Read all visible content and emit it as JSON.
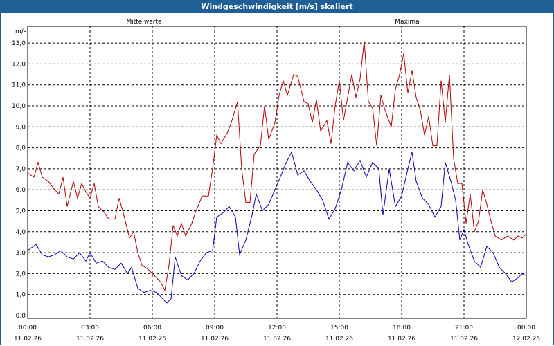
{
  "chart_data": {
    "type": "line",
    "title": "Windgeschwindigkeit [m/s] skaliert",
    "ylabel": "m/s",
    "ylim": [
      0,
      13.5
    ],
    "y_ticks": [
      "0,0",
      "1,0",
      "2,0",
      "3,0",
      "4,0",
      "5,0",
      "6,0",
      "7,0",
      "8,0",
      "9,0",
      "10,0",
      "11,0",
      "12,0",
      "13,0"
    ],
    "x_range_hours": [
      0,
      24
    ],
    "x_ticks": [
      {
        "time": "00:00",
        "date": "11.02.26"
      },
      {
        "time": "03:00",
        "date": "11.02.26"
      },
      {
        "time": "06:00",
        "date": "11.02.26"
      },
      {
        "time": "09:00",
        "date": "11.02.26"
      },
      {
        "time": "12:00",
        "date": "11.02.26"
      },
      {
        "time": "15:00",
        "date": "11.02.26"
      },
      {
        "time": "18:00",
        "date": "11.02.26"
      },
      {
        "time": "21:00",
        "date": "11.02.26"
      },
      {
        "time": "00:00",
        "date": "12.02.26"
      }
    ],
    "grid": true,
    "series": [
      {
        "name": "Mittelwerte",
        "color": "#0000b0",
        "points": [
          [
            0,
            3.1
          ],
          [
            0.4,
            3.4
          ],
          [
            0.7,
            2.9
          ],
          [
            1.0,
            2.8
          ],
          [
            1.3,
            2.9
          ],
          [
            1.6,
            3.1
          ],
          [
            1.9,
            2.8
          ],
          [
            2.2,
            2.7
          ],
          [
            2.5,
            3.0
          ],
          [
            2.8,
            2.6
          ],
          [
            3.0,
            3.0
          ],
          [
            3.3,
            2.5
          ],
          [
            3.6,
            2.6
          ],
          [
            3.9,
            2.3
          ],
          [
            4.2,
            2.2
          ],
          [
            4.5,
            2.5
          ],
          [
            4.8,
            2.0
          ],
          [
            5.0,
            2.3
          ],
          [
            5.3,
            1.3
          ],
          [
            5.6,
            1.1
          ],
          [
            5.9,
            1.2
          ],
          [
            6.2,
            1.1
          ],
          [
            6.4,
            0.9
          ],
          [
            6.7,
            0.6
          ],
          [
            6.9,
            0.8
          ],
          [
            7.1,
            2.8
          ],
          [
            7.4,
            1.9
          ],
          [
            7.7,
            1.7
          ],
          [
            8.0,
            2.0
          ],
          [
            8.3,
            2.6
          ],
          [
            8.6,
            3.0
          ],
          [
            8.9,
            3.1
          ],
          [
            9.1,
            4.7
          ],
          [
            9.4,
            4.9
          ],
          [
            9.7,
            5.2
          ],
          [
            10.0,
            4.7
          ],
          [
            10.2,
            2.9
          ],
          [
            10.5,
            3.6
          ],
          [
            10.8,
            4.8
          ],
          [
            11.0,
            5.8
          ],
          [
            11.3,
            5.0
          ],
          [
            11.6,
            5.3
          ],
          [
            11.9,
            6.0
          ],
          [
            12.2,
            6.7
          ],
          [
            12.4,
            7.2
          ],
          [
            12.7,
            7.8
          ],
          [
            13.0,
            6.7
          ],
          [
            13.3,
            6.9
          ],
          [
            13.6,
            6.4
          ],
          [
            13.9,
            6.0
          ],
          [
            14.2,
            5.5
          ],
          [
            14.5,
            4.6
          ],
          [
            14.8,
            5.1
          ],
          [
            15.1,
            6.0
          ],
          [
            15.4,
            7.3
          ],
          [
            15.7,
            6.9
          ],
          [
            16.0,
            7.4
          ],
          [
            16.3,
            6.6
          ],
          [
            16.6,
            7.3
          ],
          [
            16.9,
            7.0
          ],
          [
            17.1,
            4.8
          ],
          [
            17.4,
            7.0
          ],
          [
            17.7,
            5.2
          ],
          [
            18.0,
            5.7
          ],
          [
            18.3,
            7.0
          ],
          [
            18.5,
            7.8
          ],
          [
            18.7,
            6.4
          ],
          [
            19.0,
            5.6
          ],
          [
            19.3,
            5.3
          ],
          [
            19.6,
            4.7
          ],
          [
            19.9,
            5.2
          ],
          [
            20.1,
            7.3
          ],
          [
            20.4,
            6.3
          ],
          [
            20.6,
            5.5
          ],
          [
            20.8,
            3.6
          ],
          [
            21.0,
            4.1
          ],
          [
            21.2,
            3.4
          ],
          [
            21.5,
            2.6
          ],
          [
            21.8,
            2.3
          ],
          [
            22.1,
            3.3
          ],
          [
            22.4,
            3.0
          ],
          [
            22.7,
            2.3
          ],
          [
            23.0,
            2.0
          ],
          [
            23.3,
            1.6
          ],
          [
            23.6,
            1.8
          ],
          [
            23.8,
            2.0
          ],
          [
            24.0,
            1.9
          ]
        ]
      },
      {
        "name": "Maxima",
        "color": "#b00000",
        "points": [
          [
            0,
            6.8
          ],
          [
            0.3,
            6.6
          ],
          [
            0.5,
            7.3
          ],
          [
            0.7,
            6.6
          ],
          [
            1.0,
            6.4
          ],
          [
            1.3,
            6.0
          ],
          [
            1.5,
            5.8
          ],
          [
            1.7,
            6.6
          ],
          [
            1.9,
            5.2
          ],
          [
            2.2,
            6.4
          ],
          [
            2.4,
            5.6
          ],
          [
            2.6,
            6.3
          ],
          [
            2.8,
            5.9
          ],
          [
            3.0,
            5.6
          ],
          [
            3.2,
            6.3
          ],
          [
            3.4,
            5.2
          ],
          [
            3.7,
            4.9
          ],
          [
            3.9,
            4.6
          ],
          [
            4.2,
            4.6
          ],
          [
            4.4,
            5.6
          ],
          [
            4.6,
            4.9
          ],
          [
            4.9,
            3.7
          ],
          [
            5.1,
            4.0
          ],
          [
            5.3,
            3.0
          ],
          [
            5.5,
            2.4
          ],
          [
            5.8,
            2.2
          ],
          [
            6.1,
            1.9
          ],
          [
            6.4,
            1.6
          ],
          [
            6.6,
            1.2
          ],
          [
            6.8,
            2.4
          ],
          [
            7.0,
            4.3
          ],
          [
            7.2,
            3.8
          ],
          [
            7.4,
            4.4
          ],
          [
            7.6,
            3.8
          ],
          [
            7.9,
            4.4
          ],
          [
            8.1,
            5.0
          ],
          [
            8.4,
            5.7
          ],
          [
            8.7,
            5.7
          ],
          [
            8.9,
            7.0
          ],
          [
            9.1,
            8.6
          ],
          [
            9.3,
            8.2
          ],
          [
            9.6,
            8.7
          ],
          [
            9.8,
            9.2
          ],
          [
            10.1,
            10.2
          ],
          [
            10.3,
            7.0
          ],
          [
            10.5,
            5.4
          ],
          [
            10.7,
            5.4
          ],
          [
            10.9,
            7.7
          ],
          [
            11.2,
            8.1
          ],
          [
            11.4,
            10.0
          ],
          [
            11.6,
            8.4
          ],
          [
            11.9,
            9.2
          ],
          [
            12.1,
            10.5
          ],
          [
            12.3,
            11.2
          ],
          [
            12.5,
            10.5
          ],
          [
            12.8,
            11.5
          ],
          [
            13.0,
            11.4
          ],
          [
            13.3,
            10.2
          ],
          [
            13.5,
            10.1
          ],
          [
            13.7,
            9.2
          ],
          [
            13.9,
            10.3
          ],
          [
            14.1,
            8.8
          ],
          [
            14.4,
            9.3
          ],
          [
            14.6,
            8.2
          ],
          [
            14.8,
            10.0
          ],
          [
            15.0,
            11.2
          ],
          [
            15.2,
            9.3
          ],
          [
            15.4,
            10.4
          ],
          [
            15.6,
            11.5
          ],
          [
            15.8,
            10.4
          ],
          [
            16.0,
            11.3
          ],
          [
            16.2,
            13.1
          ],
          [
            16.4,
            10.2
          ],
          [
            16.6,
            9.9
          ],
          [
            16.8,
            8.1
          ],
          [
            17.0,
            10.5
          ],
          [
            17.2,
            9.8
          ],
          [
            17.5,
            9.0
          ],
          [
            17.7,
            10.8
          ],
          [
            17.9,
            11.5
          ],
          [
            18.1,
            12.5
          ],
          [
            18.3,
            10.6
          ],
          [
            18.5,
            11.7
          ],
          [
            18.7,
            10.4
          ],
          [
            18.9,
            9.8
          ],
          [
            19.1,
            8.6
          ],
          [
            19.3,
            9.5
          ],
          [
            19.5,
            8.1
          ],
          [
            19.7,
            8.1
          ],
          [
            19.9,
            11.2
          ],
          [
            20.1,
            9.2
          ],
          [
            20.3,
            11.5
          ],
          [
            20.5,
            7.5
          ],
          [
            20.7,
            6.3
          ],
          [
            20.9,
            6.3
          ],
          [
            21.1,
            4.4
          ],
          [
            21.3,
            5.8
          ],
          [
            21.5,
            4.0
          ],
          [
            21.7,
            4.5
          ],
          [
            21.9,
            6.0
          ],
          [
            22.1,
            5.3
          ],
          [
            22.3,
            4.5
          ],
          [
            22.5,
            3.8
          ],
          [
            22.8,
            3.6
          ],
          [
            23.1,
            3.8
          ],
          [
            23.4,
            3.6
          ],
          [
            23.6,
            3.8
          ],
          [
            23.8,
            3.7
          ],
          [
            24.0,
            3.9
          ]
        ]
      }
    ]
  }
}
